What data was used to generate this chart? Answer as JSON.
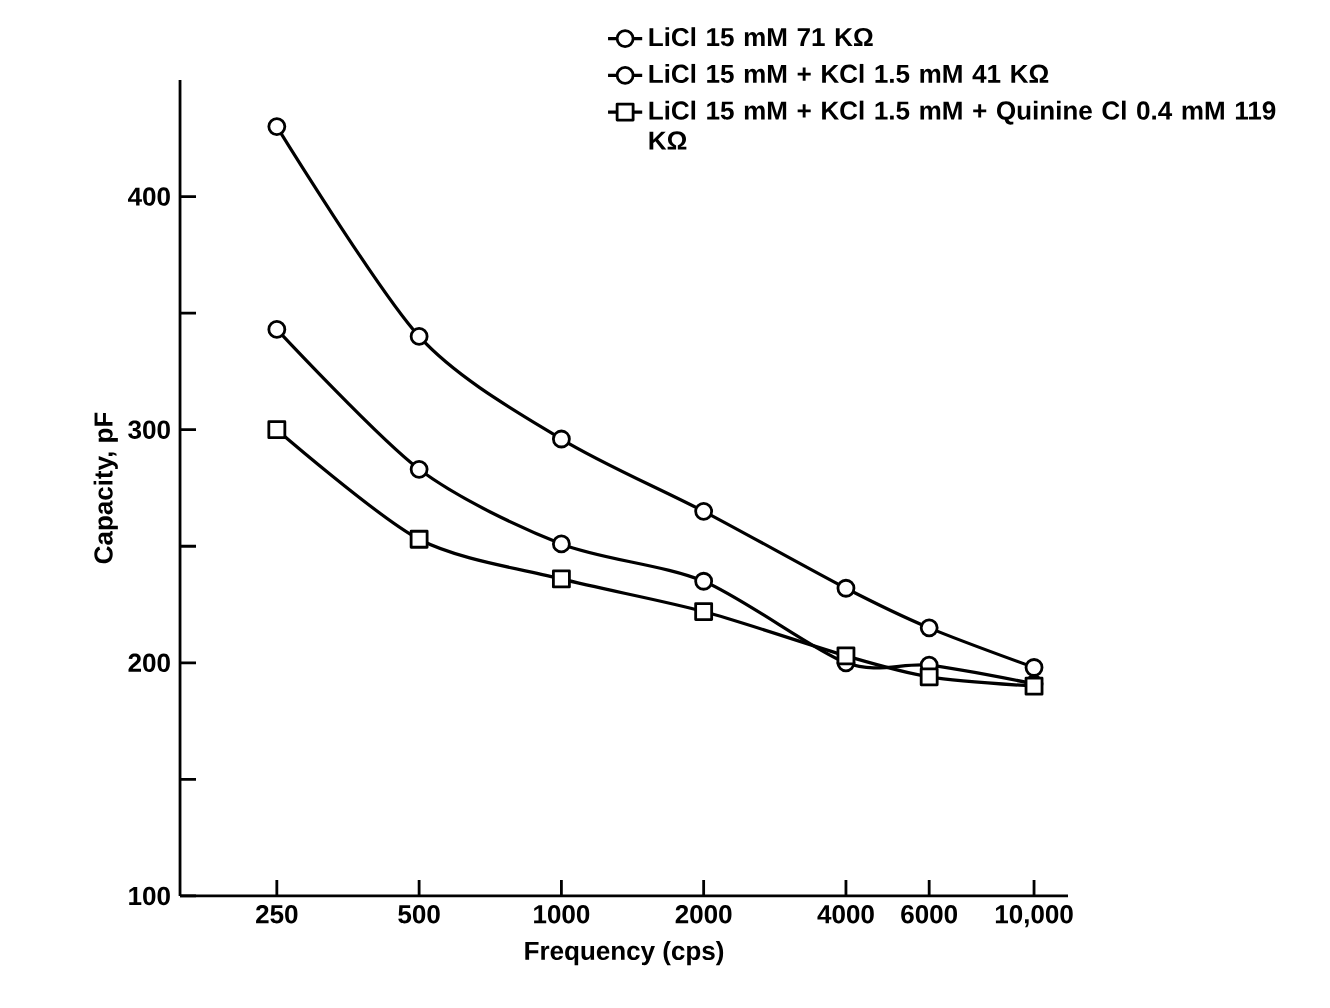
{
  "chart_data": {
    "type": "line",
    "xlabel": "Frequency (cps)",
    "ylabel": "Capacity, pF",
    "log": "x",
    "x": [
      250,
      500,
      1000,
      2000,
      4000,
      6000,
      10000
    ],
    "xlim": [
      156,
      11800
    ],
    "xticks": [
      250,
      500,
      1000,
      2000,
      4000,
      6000,
      {
        "value": 10000,
        "label": "10,000"
      }
    ],
    "ylim": [
      100,
      450
    ],
    "yticks": [
      100,
      {
        "value": 150,
        "label": null
      },
      200,
      {
        "value": 250,
        "label": null
      },
      300,
      {
        "value": 350,
        "label": null
      },
      400
    ],
    "grid": false,
    "legend": "top right",
    "line_style": "solid",
    "series": [
      {
        "name": "LiCl   15 mM   71 KΩ",
        "color": "#000000",
        "marker": "circle",
        "values": [
          430,
          340,
          296,
          265,
          232,
          215,
          198
        ]
      },
      {
        "name": "LiCl   15 mM + KCl 1.5 mM  41 KΩ",
        "color": "#000000",
        "marker": "circle",
        "values": [
          343,
          283,
          251,
          235,
          200,
          199,
          191
        ]
      },
      {
        "name": "LiCl   15 mM + KCl 1.5 mM + Quinine Cl 0.4 mM   119 KΩ",
        "color": "#000000",
        "marker": "square",
        "values": [
          300,
          253,
          236,
          222,
          203,
          194,
          190
        ]
      }
    ]
  }
}
